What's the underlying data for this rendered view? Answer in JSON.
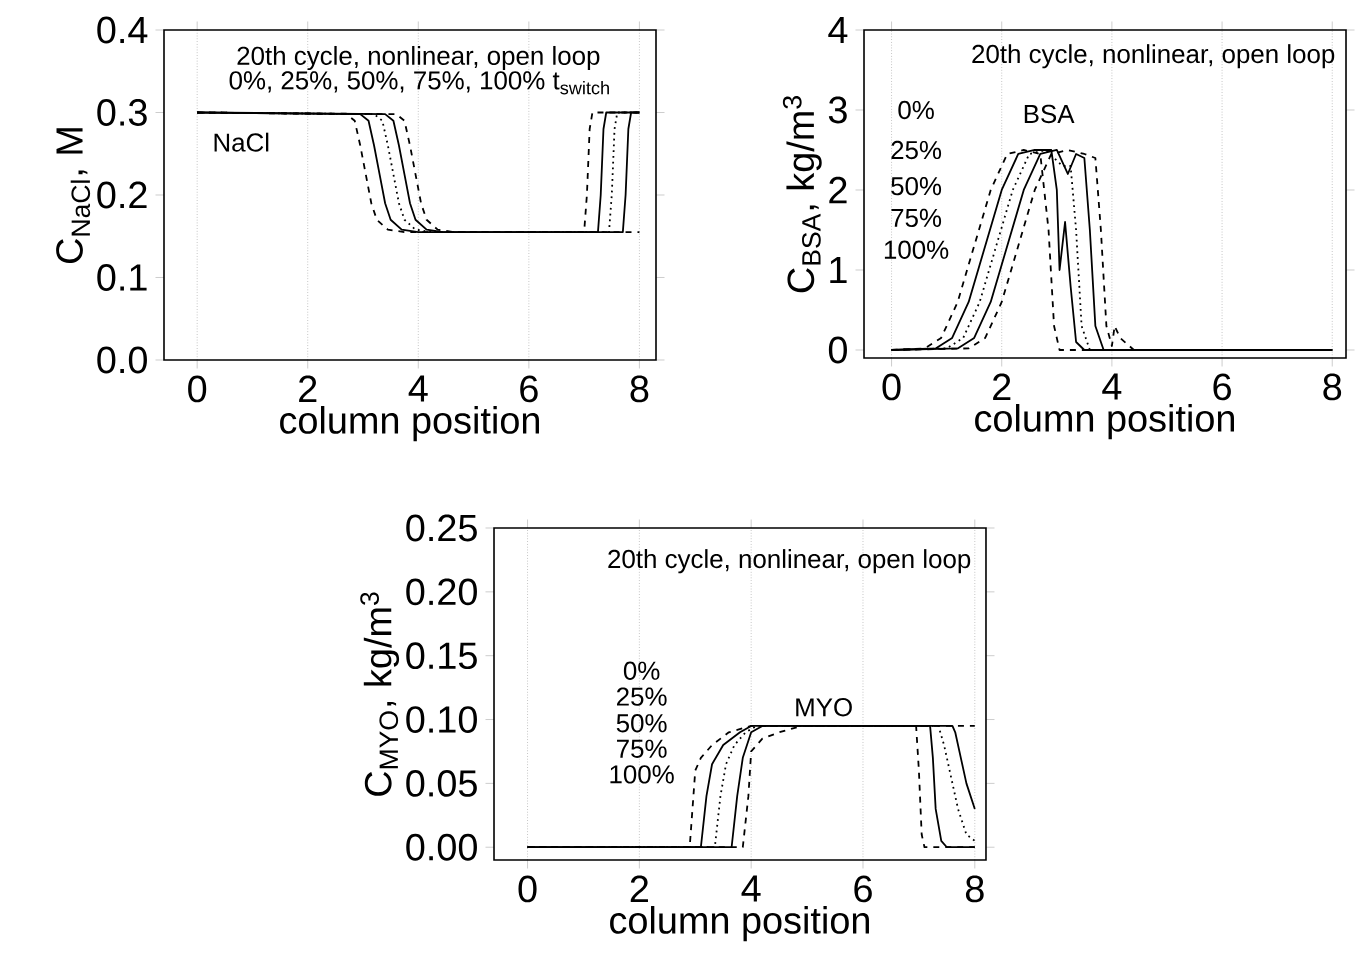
{
  "chart_data": [
    {
      "type": "line",
      "xlabel": "column position",
      "ylabel": "C$_{NaCl}$, M",
      "xlim": [
        -0.6,
        8.3
      ],
      "ylim": [
        0,
        0.4
      ],
      "xticks": [
        0,
        2,
        4,
        6,
        8
      ],
      "yticks": [
        {
          "value": 0,
          "label": "0.0"
        },
        0.1,
        0.2,
        0.3,
        0.4
      ],
      "grid": "x",
      "annotations": [
        "20th cycle, nonlinear, open loop",
        "0%, 25%, 50%, 75%, 100% t$_{switch}$",
        "NaCl"
      ],
      "series": [
        {
          "color": "#000000",
          "line_style": "dashed",
          "x": [
            0,
            2.7,
            2.85,
            2.95,
            3.05,
            3.15,
            3.25,
            3.45,
            3.75,
            7.0,
            7.05,
            7.1,
            7.15,
            8
          ],
          "values": [
            0.3,
            0.298,
            0.29,
            0.26,
            0.225,
            0.19,
            0.17,
            0.158,
            0.155,
            0.155,
            0.2,
            0.28,
            0.3,
            0.3
          ]
        },
        {
          "color": "#000000",
          "line_style": "solid",
          "x": [
            0,
            2.95,
            3.1,
            3.2,
            3.3,
            3.4,
            3.5,
            3.7,
            4.0,
            7.25,
            7.3,
            7.35,
            7.4,
            8
          ],
          "values": [
            0.3,
            0.298,
            0.29,
            0.26,
            0.225,
            0.19,
            0.17,
            0.158,
            0.155,
            0.155,
            0.2,
            0.28,
            0.3,
            0.3
          ]
        },
        {
          "color": "#000000",
          "line_style": "dotted",
          "x": [
            0,
            3.2,
            3.35,
            3.45,
            3.55,
            3.65,
            3.75,
            3.95,
            4.25,
            7.45,
            7.5,
            7.55,
            7.6,
            8
          ],
          "values": [
            0.3,
            0.298,
            0.29,
            0.26,
            0.225,
            0.19,
            0.17,
            0.158,
            0.155,
            0.155,
            0.2,
            0.28,
            0.3,
            0.3
          ]
        },
        {
          "color": "#000000",
          "line_style": "solid",
          "x": [
            0,
            3.4,
            3.55,
            3.65,
            3.75,
            3.85,
            3.95,
            4.15,
            4.45,
            7.7,
            7.75,
            7.8,
            7.85,
            8
          ],
          "values": [
            0.3,
            0.298,
            0.29,
            0.26,
            0.225,
            0.19,
            0.17,
            0.158,
            0.155,
            0.155,
            0.2,
            0.28,
            0.3,
            0.3
          ]
        },
        {
          "color": "#000000",
          "line_style": "dashed",
          "x": [
            0,
            3.6,
            3.75,
            3.85,
            3.95,
            4.05,
            4.15,
            4.35,
            4.65,
            8
          ],
          "values": [
            0.3,
            0.298,
            0.29,
            0.26,
            0.225,
            0.19,
            0.17,
            0.158,
            0.155,
            0.155
          ]
        }
      ]
    },
    {
      "type": "line",
      "xlabel": "column position",
      "ylabel": "C$_{BSA}$, kg/m$^{3}$",
      "xlim": [
        -0.5,
        8.25
      ],
      "ylim": [
        -0.1,
        4
      ],
      "xticks": [
        0,
        2,
        4,
        6,
        8
      ],
      "yticks": [
        0,
        1,
        2,
        3,
        4
      ],
      "grid": "x",
      "annotations": [
        "20th cycle, nonlinear, open loop",
        "0%",
        "25%",
        "50%",
        "75%",
        "100%",
        "BSA"
      ],
      "series": [
        {
          "color": "#000000",
          "line_style": "dashed",
          "x": [
            0,
            0.6,
            0.9,
            1.2,
            1.5,
            1.8,
            2.1,
            2.4,
            2.7,
            2.85,
            2.95,
            3.05,
            3.2,
            8
          ],
          "values": [
            0,
            0.02,
            0.15,
            0.6,
            1.3,
            2.0,
            2.45,
            2.5,
            2.45,
            1.5,
            0.3,
            0,
            0,
            0
          ]
        },
        {
          "color": "#000000",
          "line_style": "solid",
          "x": [
            0,
            0.8,
            1.1,
            1.4,
            1.7,
            2.0,
            2.3,
            2.6,
            2.9,
            3.0,
            3.05,
            3.15,
            3.25,
            3.35,
            3.5,
            8
          ],
          "values": [
            0,
            0.02,
            0.15,
            0.6,
            1.3,
            2.0,
            2.45,
            2.5,
            2.5,
            2.0,
            1.0,
            1.6,
            0.8,
            0.1,
            0,
            0
          ]
        },
        {
          "color": "#000000",
          "line_style": "dotted",
          "x": [
            0,
            1.0,
            1.3,
            1.6,
            1.9,
            2.2,
            2.5,
            2.8,
            3.1,
            3.25,
            3.35,
            3.45,
            3.6,
            8
          ],
          "values": [
            0,
            0.02,
            0.15,
            0.6,
            1.3,
            2.0,
            2.45,
            2.5,
            2.3,
            2.3,
            1.5,
            0.3,
            0,
            0
          ]
        },
        {
          "color": "#000000",
          "line_style": "solid",
          "x": [
            0,
            1.2,
            1.5,
            1.8,
            2.1,
            2.4,
            2.7,
            3.0,
            3.2,
            3.35,
            3.5,
            3.6,
            3.7,
            3.85,
            8
          ],
          "values": [
            0,
            0.02,
            0.15,
            0.6,
            1.3,
            2.0,
            2.45,
            2.5,
            2.2,
            2.45,
            2.4,
            1.5,
            0.3,
            0,
            0
          ]
        },
        {
          "color": "#000000",
          "line_style": "dashed",
          "x": [
            0,
            1.4,
            1.7,
            2.0,
            2.3,
            2.6,
            2.9,
            3.2,
            3.5,
            3.7,
            3.8,
            3.9,
            4.0,
            4.05,
            4.15,
            4.4,
            8
          ],
          "values": [
            0,
            0.02,
            0.15,
            0.6,
            1.3,
            2.0,
            2.45,
            2.5,
            2.45,
            2.4,
            1.5,
            0.3,
            0.05,
            0.3,
            0.15,
            0,
            0
          ]
        }
      ]
    },
    {
      "type": "line",
      "xlabel": "column position",
      "ylabel": "C$_{MYO}$, kg/m$^{3}$",
      "xlim": [
        -0.6,
        8.2
      ],
      "ylim": [
        -0.01,
        0.25
      ],
      "xticks": [
        0,
        2,
        4,
        6,
        8
      ],
      "yticks": [
        {
          "value": 0,
          "label": "0.00"
        },
        0.05,
        {
          "value": 0.1,
          "label": "0.10"
        },
        0.15,
        {
          "value": 0.2,
          "label": "0.20"
        },
        0.25
      ],
      "grid": "x",
      "annotations": [
        "20th cycle, nonlinear, open loop",
        "0%",
        "25%",
        "50%",
        "75%",
        "100%",
        "MYO"
      ],
      "series": [
        {
          "color": "#000000",
          "line_style": "dashed",
          "x": [
            0,
            2.9,
            2.95,
            3.0,
            3.1,
            3.3,
            3.6,
            4.0,
            6.95,
            7.0,
            7.05,
            7.1,
            8
          ],
          "values": [
            0,
            0,
            0.03,
            0.06,
            0.07,
            0.08,
            0.09,
            0.095,
            0.095,
            0.06,
            0.01,
            0,
            0
          ]
        },
        {
          "color": "#000000",
          "line_style": "solid",
          "x": [
            0,
            3.1,
            3.2,
            3.3,
            3.5,
            3.8,
            4.0,
            7.2,
            7.25,
            7.3,
            7.4,
            7.5,
            8
          ],
          "values": [
            0,
            0,
            0.04,
            0.065,
            0.08,
            0.09,
            0.095,
            0.095,
            0.07,
            0.03,
            0.005,
            0,
            0
          ]
        },
        {
          "color": "#000000",
          "line_style": "dotted",
          "x": [
            0,
            3.35,
            3.45,
            3.55,
            3.7,
            3.9,
            4.1,
            7.35,
            7.45,
            7.55,
            7.7,
            7.85,
            8
          ],
          "values": [
            0,
            0,
            0.04,
            0.065,
            0.08,
            0.09,
            0.095,
            0.095,
            0.08,
            0.06,
            0.03,
            0.01,
            0.005
          ]
        },
        {
          "color": "#000000",
          "line_style": "solid",
          "x": [
            0,
            3.65,
            3.75,
            3.85,
            4.0,
            4.2,
            7.6,
            7.65,
            7.75,
            7.85,
            8
          ],
          "values": [
            0,
            0,
            0.04,
            0.07,
            0.09,
            0.095,
            0.095,
            0.09,
            0.07,
            0.05,
            0.03
          ]
        },
        {
          "color": "#000000",
          "line_style": "dashed",
          "x": [
            0,
            3.85,
            3.95,
            4.0,
            4.2,
            4.5,
            4.9,
            7.9,
            8
          ],
          "values": [
            0,
            0,
            0.04,
            0.075,
            0.085,
            0.09,
            0.095,
            0.095,
            0.095
          ]
        }
      ]
    }
  ]
}
